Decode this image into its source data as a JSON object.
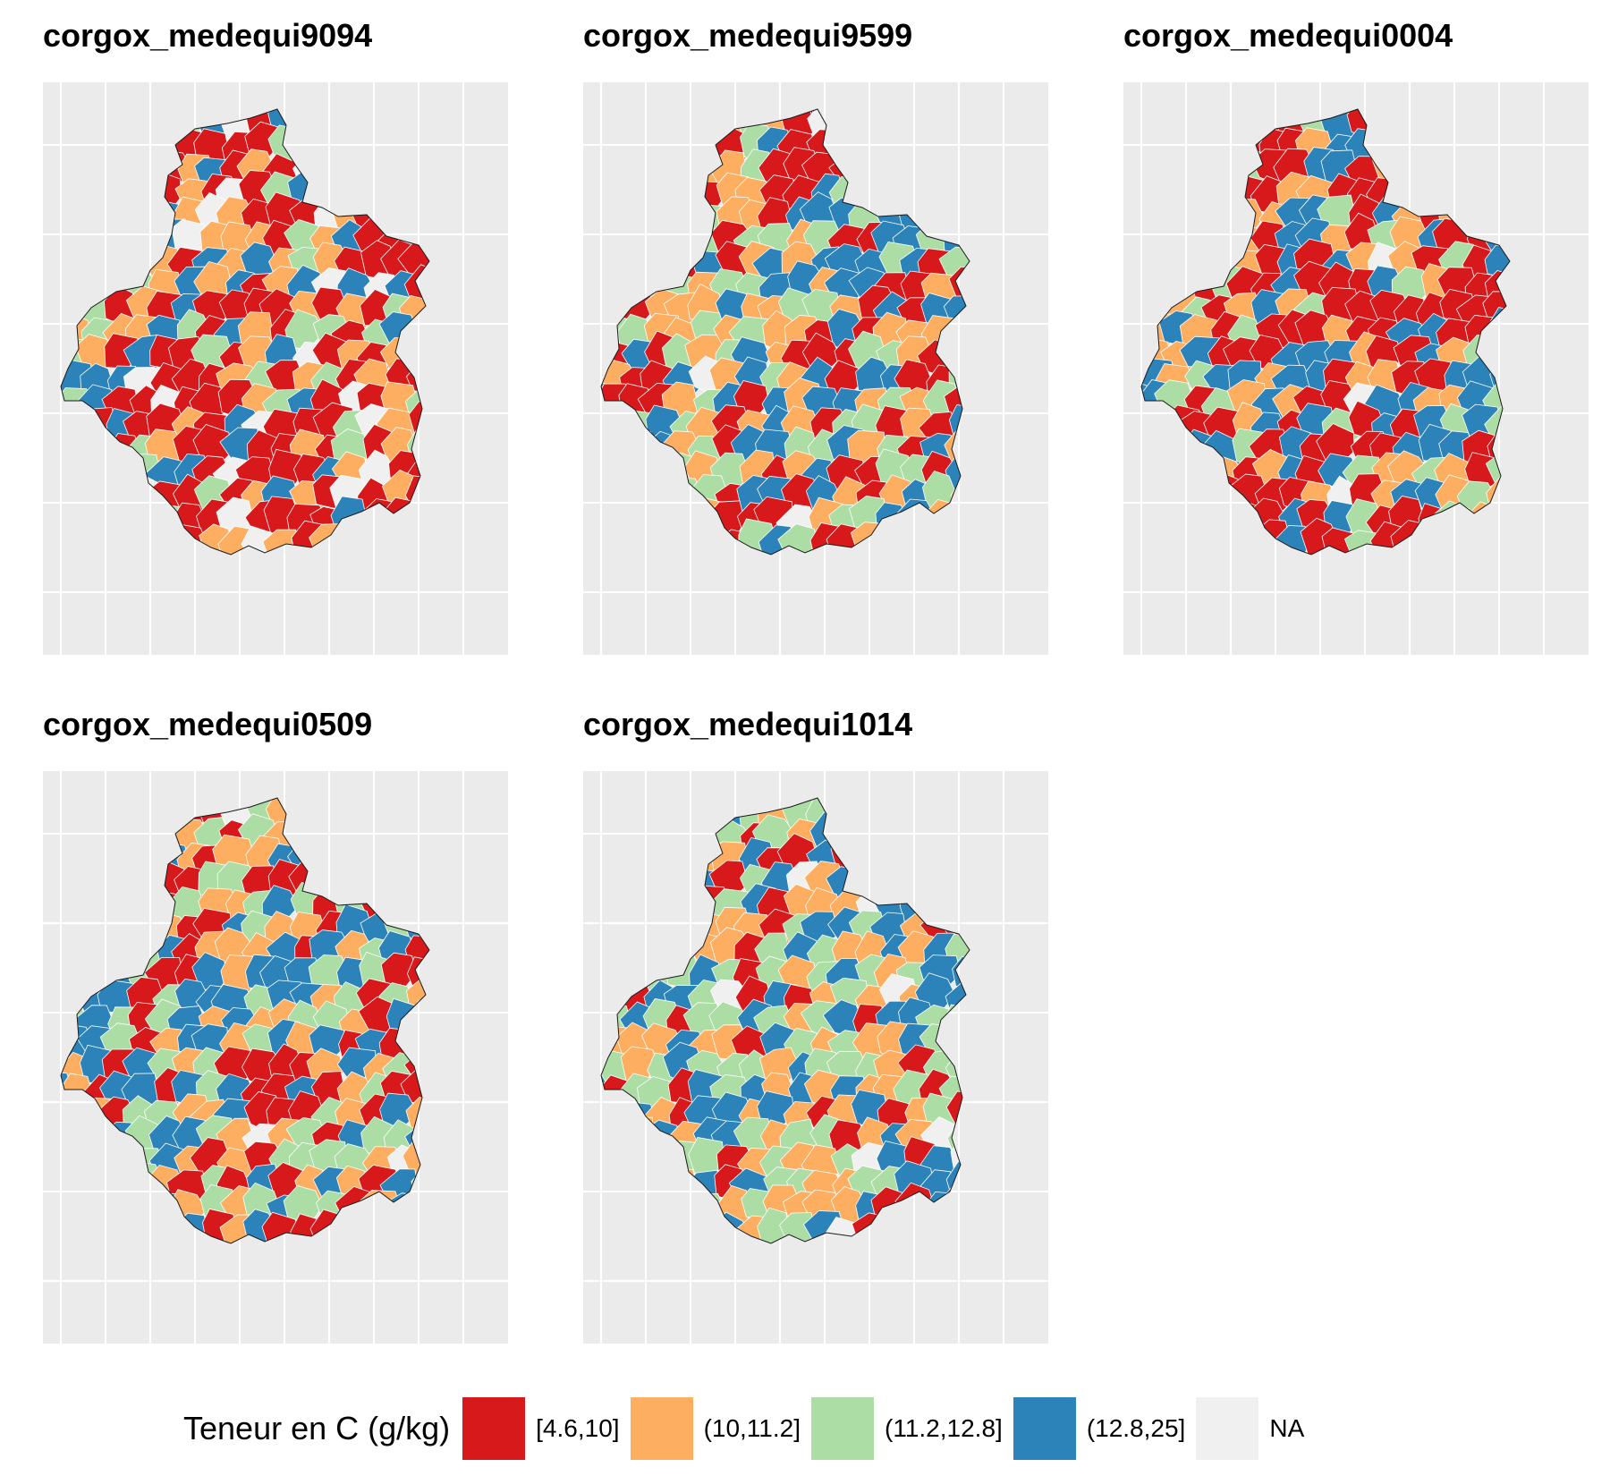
{
  "panels": [
    {
      "title": "corgox_medequi9094",
      "palette": [
        "red",
        "orange",
        "light-green",
        "blue",
        "NA"
      ],
      "mix": [
        0.4,
        0.22,
        0.12,
        0.16,
        0.1
      ]
    },
    {
      "title": "corgox_medequi9599",
      "palette": [
        "red",
        "orange",
        "light-green",
        "blue",
        "NA"
      ],
      "mix": [
        0.3,
        0.24,
        0.22,
        0.22,
        0.02
      ]
    },
    {
      "title": "corgox_medequi0004",
      "palette": [
        "red",
        "orange",
        "light-green",
        "blue",
        "NA"
      ],
      "mix": [
        0.38,
        0.22,
        0.14,
        0.24,
        0.02
      ]
    },
    {
      "title": "corgox_medequi0509",
      "palette": [
        "red",
        "orange",
        "light-green",
        "blue",
        "NA"
      ],
      "mix": [
        0.24,
        0.26,
        0.22,
        0.26,
        0.02
      ]
    },
    {
      "title": "corgox_medequi1014",
      "palette": [
        "red",
        "orange",
        "light-green",
        "blue",
        "NA"
      ],
      "mix": [
        0.18,
        0.26,
        0.3,
        0.24,
        0.02
      ]
    }
  ],
  "legend": {
    "title": "Teneur en C (g/kg)",
    "items": [
      {
        "label": "[4.6,10]",
        "color": "#d7191c"
      },
      {
        "label": "(10,11.2]",
        "color": "#fdae61"
      },
      {
        "label": "(11.2,12.8]",
        "color": "#abdda4"
      },
      {
        "label": "(12.8,25]",
        "color": "#2b83ba"
      },
      {
        "label": "NA",
        "color": "#f0f0f0"
      }
    ]
  },
  "colors": {
    "panel_background": "#ebebeb",
    "grid": "#ffffff",
    "border": "#1a1a1a"
  }
}
